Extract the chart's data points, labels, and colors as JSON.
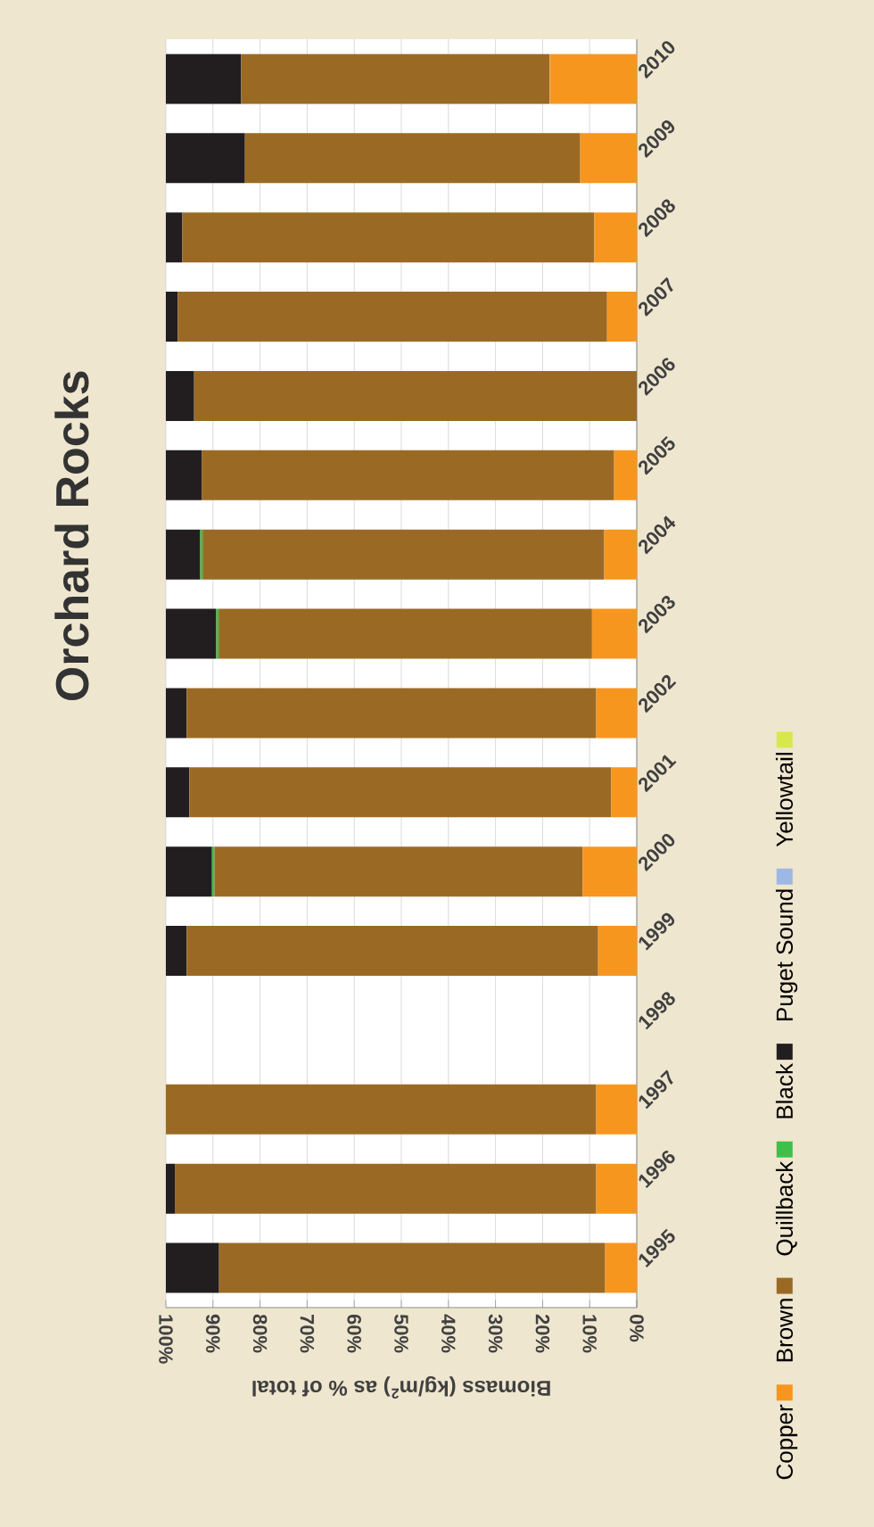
{
  "chart_data": {
    "type": "bar",
    "orientation": "horizontal",
    "title": "Orchard Rocks",
    "xlabel": "Biomass (kg/m$^{2}$) as % of total",
    "categories": [
      "2010",
      "2009",
      "2008",
      "2007",
      "2006",
      "2005",
      "2004",
      "2003",
      "2002",
      "2001",
      "2000",
      "1999",
      "1998",
      "1997",
      "1996",
      "1995"
    ],
    "stacked": true,
    "series": [
      {
        "name": "Copper",
        "color": "#f7961e",
        "values": [
          18.5,
          12,
          9,
          6.3,
          0,
          4.8,
          6.9,
          9.5,
          8.6,
          5.4,
          11.5,
          8.2,
          null,
          8.6,
          8.6,
          6.7
        ]
      },
      {
        "name": "Brown",
        "color": "#9a6a25",
        "values": [
          65.5,
          71.2,
          87.5,
          91.2,
          94,
          87.6,
          85.3,
          79.3,
          87,
          89.6,
          78.2,
          87.4,
          null,
          91.4,
          89.5,
          82
        ]
      },
      {
        "name": "Quillback",
        "color": "#3fbf4a",
        "values": [
          0,
          0,
          0,
          0,
          0,
          0,
          0.5,
          0.5,
          0,
          0,
          0.5,
          0,
          null,
          0,
          0,
          0
        ]
      },
      {
        "name": "Black",
        "color": "#221e1f",
        "values": [
          16,
          16.8,
          3.5,
          2.5,
          6,
          7.6,
          7.3,
          10.7,
          4.4,
          5,
          9.8,
          4.4,
          null,
          0,
          1.9,
          11.3
        ]
      },
      {
        "name": "Puget Sound",
        "color": "#9db8e2",
        "values": [
          0,
          0,
          0,
          0,
          0,
          0,
          0,
          0,
          0,
          0,
          0,
          0,
          null,
          0,
          0,
          0
        ]
      },
      {
        "name": "Yellowtail",
        "color": "#d8e84c",
        "values": [
          0,
          0,
          0,
          0,
          0,
          0,
          0,
          0,
          0,
          0,
          0,
          0,
          null,
          0,
          0,
          0
        ]
      }
    ],
    "xlim": [
      100,
      0
    ],
    "xticks": [
      {
        "value": 100,
        "label": "100%"
      },
      {
        "value": 90,
        "label": "90%"
      },
      {
        "value": 80,
        "label": "80%"
      },
      {
        "value": 70,
        "label": "70%"
      },
      {
        "value": 60,
        "label": "60%"
      },
      {
        "value": 50,
        "label": "50%"
      },
      {
        "value": 40,
        "label": "40%"
      },
      {
        "value": 30,
        "label": "30%"
      },
      {
        "value": 20,
        "label": "20%"
      },
      {
        "value": 10,
        "label": "10%"
      },
      {
        "value": 0,
        "label": "0%"
      }
    ],
    "grid": "x",
    "legend": "right"
  }
}
